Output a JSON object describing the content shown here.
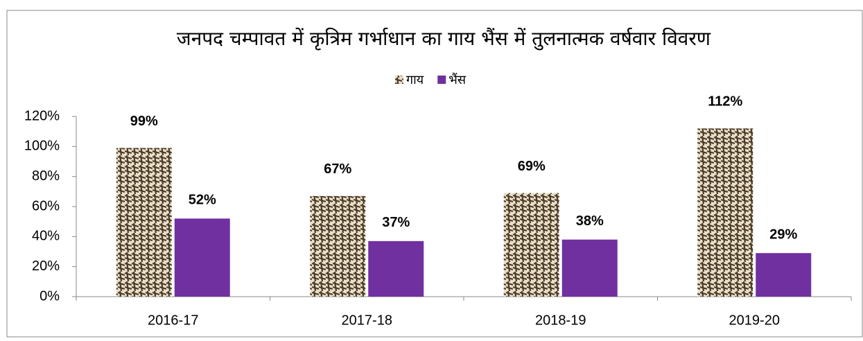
{
  "chart_data": {
    "type": "bar",
    "title": "जनपद चम्पावत में कृत्रिम गर्भाधान का गाय भैंस में तुलनात्मक वर्षवार विवरण",
    "categories": [
      "2016-17",
      "2017-18",
      "2018-19",
      "2019-20"
    ],
    "series": [
      {
        "name": "गाय",
        "color": "#4a3826",
        "values": [
          99,
          67,
          69,
          112
        ],
        "value_labels": [
          "99%",
          "67%",
          "69%",
          "112%"
        ]
      },
      {
        "name": "भैंस",
        "color": "#7030a0",
        "values": [
          52,
          37,
          38,
          29
        ],
        "value_labels": [
          "52%",
          "37%",
          "38%",
          "29%"
        ]
      }
    ],
    "ylim": [
      0,
      120
    ],
    "yticks": [
      {
        "value": 0,
        "label": "0%"
      },
      {
        "value": 20,
        "label": "20%"
      },
      {
        "value": 40,
        "label": "40%"
      },
      {
        "value": 60,
        "label": "60%"
      },
      {
        "value": 80,
        "label": "80%"
      },
      {
        "value": 100,
        "label": "100%"
      },
      {
        "value": 120,
        "label": "120%"
      }
    ],
    "legend": "top",
    "grid": false
  }
}
